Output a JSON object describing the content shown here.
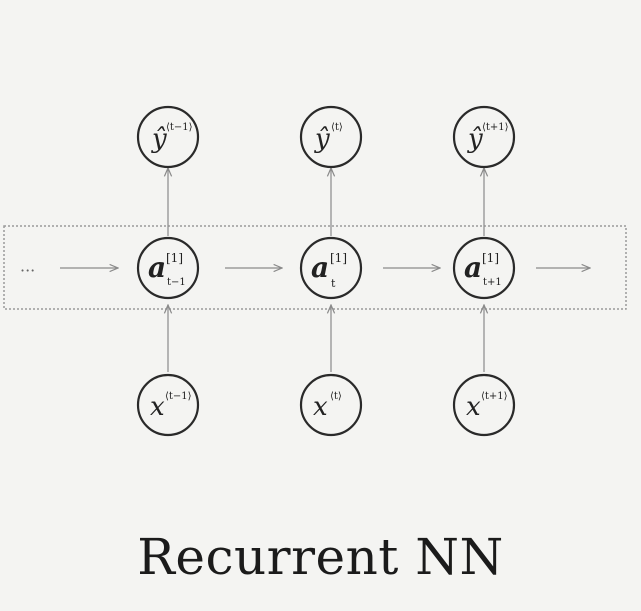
{
  "title": "Recurrent NN",
  "colors": {
    "background": "#f4f4f2",
    "stroke": "#2a2a2a",
    "arrow": "#8a8a8a",
    "box": "#9a9a9a"
  },
  "diagram": {
    "leading_ellipsis": "···",
    "outputs": [
      {
        "base": "ŷ",
        "sup": "⟨t−1⟩"
      },
      {
        "base": "ŷ",
        "sup": "⟨t⟩"
      },
      {
        "base": "ŷ",
        "sup": "⟨t+1⟩"
      }
    ],
    "hidden": [
      {
        "base": "a",
        "sup": "[1]",
        "sub": "t−1"
      },
      {
        "base": "a",
        "sup": "[1]",
        "sub": "t"
      },
      {
        "base": "a",
        "sup": "[1]",
        "sub": "t+1"
      }
    ],
    "inputs": [
      {
        "base": "x",
        "sup": "⟨t−1⟩"
      },
      {
        "base": "x",
        "sup": "⟨t⟩"
      },
      {
        "base": "x",
        "sup": "⟨t+1⟩"
      }
    ]
  }
}
